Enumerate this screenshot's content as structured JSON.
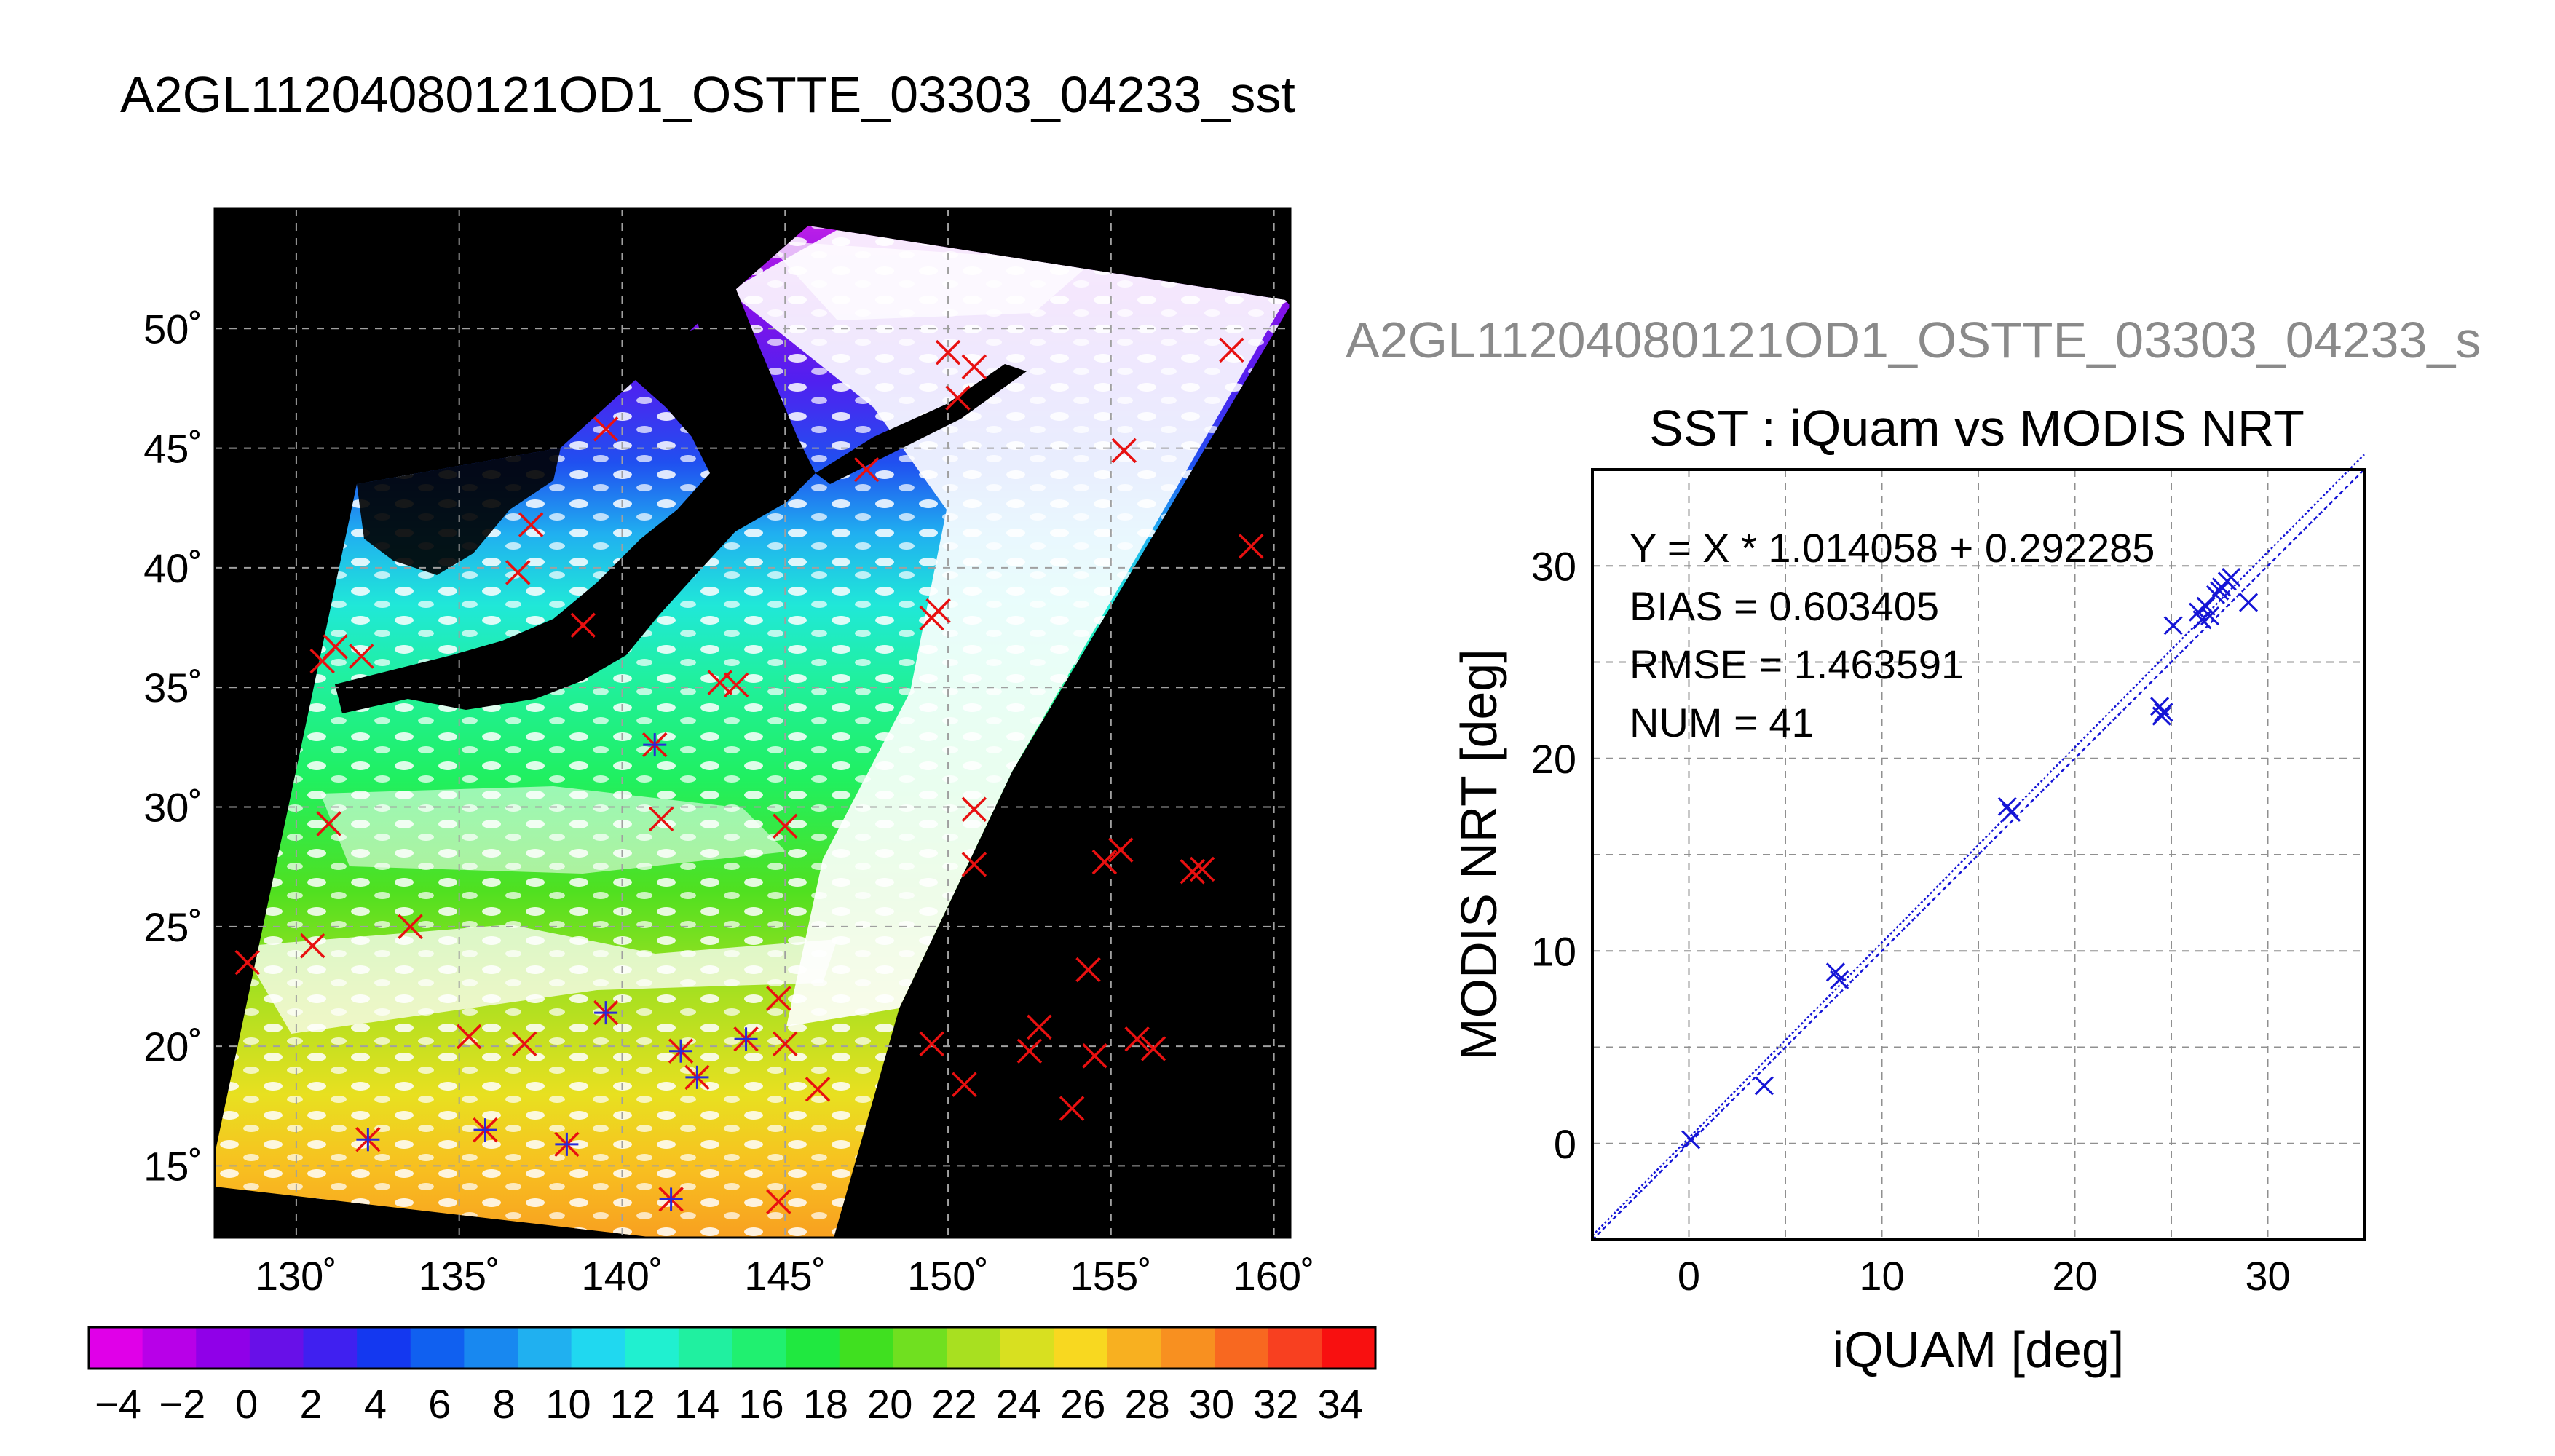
{
  "figure": {
    "main_title": "A2GL11204080121OD1_OSTTE_03303_04233_sst",
    "scatter_file_label": "A2GL11204080121OD1_OSTTE_03303_04233_s"
  },
  "map": {
    "lon_ticks": [
      "130˚",
      "135˚",
      "140˚",
      "145˚",
      "150˚",
      "155˚",
      "160˚"
    ],
    "lat_ticks": [
      "50˚",
      "45˚",
      "40˚",
      "35˚",
      "30˚",
      "25˚",
      "20˚",
      "15˚"
    ],
    "lon_range": [
      127.5,
      160.5
    ],
    "lat_range": [
      12,
      55
    ],
    "marker_color": "#e81010",
    "buoy_color": "#2a2ad8"
  },
  "colorbar": {
    "labels": [
      "−4",
      "−2",
      "0",
      "2",
      "4",
      "6",
      "8",
      "10",
      "12",
      "14",
      "16",
      "18",
      "20",
      "22",
      "24",
      "26",
      "28",
      "30",
      "32",
      "34"
    ],
    "range": [
      -4,
      36
    ],
    "colors": [
      "#e000e8",
      "#b800e8",
      "#9000e8",
      "#6810e8",
      "#4020f0",
      "#1438f0",
      "#1060f0",
      "#1888f0",
      "#20b0f0",
      "#20d8f0",
      "#20f0d0",
      "#20f0a0",
      "#20f070",
      "#20e840",
      "#40e020",
      "#70e020",
      "#a8e020",
      "#d8e020",
      "#f8d820",
      "#f8b020",
      "#f89020",
      "#f86820",
      "#f84020",
      "#f81010"
    ]
  },
  "chart_data": {
    "type": "scatter",
    "title": "SST : iQuam vs MODIS NRT",
    "xlabel": "iQUAM [deg]",
    "ylabel": "MODIS NRT [deg]",
    "xlim": [
      -5,
      35
    ],
    "ylim": [
      -5,
      35
    ],
    "x_ticks": [
      "0",
      "10",
      "20",
      "30"
    ],
    "y_ticks": [
      "0",
      "10",
      "20",
      "30"
    ],
    "grid": true,
    "stats": {
      "equation": "Y = X * 1.014058 + 0.292285",
      "bias": "BIAS = 0.603405",
      "rmse": "RMSE = 1.463591",
      "num": "NUM = 41"
    },
    "fit": {
      "slope": 1.014058,
      "intercept": 0.292285
    },
    "points": [
      {
        "x": 0.1,
        "y": 0.2
      },
      {
        "x": 3.9,
        "y": 3.0
      },
      {
        "x": 7.6,
        "y": 8.9
      },
      {
        "x": 7.8,
        "y": 8.5
      },
      {
        "x": 16.5,
        "y": 17.5
      },
      {
        "x": 16.7,
        "y": 17.2
      },
      {
        "x": 24.4,
        "y": 22.7
      },
      {
        "x": 24.5,
        "y": 22.2
      },
      {
        "x": 24.6,
        "y": 22.4
      },
      {
        "x": 25.1,
        "y": 26.9
      },
      {
        "x": 26.4,
        "y": 27.6
      },
      {
        "x": 26.6,
        "y": 27.2
      },
      {
        "x": 26.8,
        "y": 27.9
      },
      {
        "x": 27.0,
        "y": 27.4
      },
      {
        "x": 27.3,
        "y": 28.5
      },
      {
        "x": 27.6,
        "y": 28.9
      },
      {
        "x": 27.9,
        "y": 29.2
      },
      {
        "x": 28.1,
        "y": 29.4
      },
      {
        "x": 29.0,
        "y": 28.1
      },
      {
        "x": 27.5,
        "y": 28.7
      }
    ],
    "marker_color": "#1515d6",
    "line_color": "#1515d6"
  }
}
